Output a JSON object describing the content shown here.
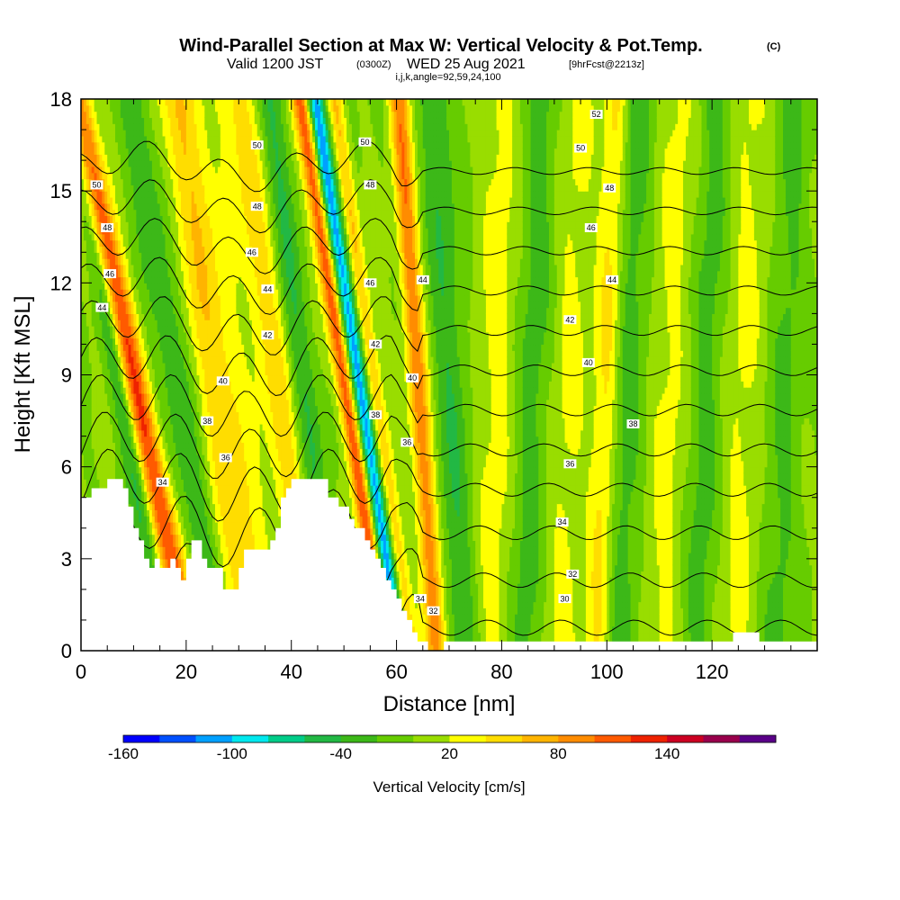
{
  "chart_data": {
    "type": "heatmap",
    "title": "Wind-Parallel Section at Max W: Vertical Velocity & Pot.Temp.",
    "copyright": "(C)",
    "subtitle_valid": "Valid 1200 JST",
    "subtitle_utc": "(0300Z)",
    "subtitle_date": "WED 25 Aug 2021",
    "subtitle_fcst": "[9hrFcst@2213z]",
    "subtitle_params": "i,j,k,angle=92,59,24,100",
    "xlabel": "Distance [nm]",
    "ylabel": "Height [Kft MSL]",
    "xlim": [
      0,
      140
    ],
    "ylim": [
      0,
      18
    ],
    "xticks": [
      0,
      20,
      40,
      60,
      80,
      100,
      120
    ],
    "yticks": [
      0,
      3,
      6,
      9,
      12,
      15,
      18
    ],
    "colorbar": {
      "label": "Vertical Velocity [cm/s]",
      "tick_labels": [
        "-160",
        "-100",
        "-40",
        "20",
        "80",
        "140"
      ],
      "tick_values": [
        -160,
        -100,
        -40,
        20,
        80,
        140
      ],
      "levels": [
        -160,
        -140,
        -120,
        -100,
        -80,
        -60,
        -40,
        -20,
        0,
        20,
        40,
        60,
        80,
        100,
        120,
        140,
        160,
        180
      ],
      "colors": [
        "#0000ff",
        "#0050ff",
        "#00a0ff",
        "#00e8ee",
        "#00cc88",
        "#22b844",
        "#3cb818",
        "#66cc00",
        "#99dd00",
        "#ffff00",
        "#ffdd00",
        "#ffb400",
        "#ff8c00",
        "#ff5a00",
        "#ee2200",
        "#cc0022",
        "#99004c",
        "#5a0088"
      ]
    },
    "isentropes": {
      "label": "Pot.Temp.",
      "levels": [
        30,
        32,
        34,
        36,
        38,
        40,
        42,
        44,
        46,
        48,
        50,
        52
      ],
      "labels": [
        {
          "text": "52",
          "x": 98,
          "y": 17.5
        },
        {
          "text": "50",
          "x": 33.5,
          "y": 16.5
        },
        {
          "text": "50",
          "x": 3,
          "y": 15.2
        },
        {
          "text": "50",
          "x": 54,
          "y": 16.6
        },
        {
          "text": "50",
          "x": 95,
          "y": 16.4
        },
        {
          "text": "48",
          "x": 5,
          "y": 13.8
        },
        {
          "text": "48",
          "x": 33.5,
          "y": 14.5
        },
        {
          "text": "48",
          "x": 55,
          "y": 15.2
        },
        {
          "text": "48",
          "x": 100.5,
          "y": 15.1
        },
        {
          "text": "46",
          "x": 5.5,
          "y": 12.3
        },
        {
          "text": "46",
          "x": 32.5,
          "y": 13.0
        },
        {
          "text": "46",
          "x": 55,
          "y": 12.0
        },
        {
          "text": "46",
          "x": 97,
          "y": 13.8
        },
        {
          "text": "44",
          "x": 4,
          "y": 11.2
        },
        {
          "text": "44",
          "x": 35.5,
          "y": 11.8
        },
        {
          "text": "44",
          "x": 65,
          "y": 12.1
        },
        {
          "text": "44",
          "x": 101,
          "y": 12.1
        },
        {
          "text": "42",
          "x": 35.5,
          "y": 10.3
        },
        {
          "text": "42",
          "x": 56,
          "y": 10.0
        },
        {
          "text": "42",
          "x": 93,
          "y": 10.8
        },
        {
          "text": "40",
          "x": 27,
          "y": 8.8
        },
        {
          "text": "40",
          "x": 63,
          "y": 8.9
        },
        {
          "text": "40",
          "x": 96.5,
          "y": 9.4
        },
        {
          "text": "38",
          "x": 24,
          "y": 7.5
        },
        {
          "text": "38",
          "x": 56,
          "y": 7.7
        },
        {
          "text": "38",
          "x": 105,
          "y": 7.4
        },
        {
          "text": "36",
          "x": 27.5,
          "y": 6.3
        },
        {
          "text": "36",
          "x": 62,
          "y": 6.8
        },
        {
          "text": "36",
          "x": 93,
          "y": 6.1
        },
        {
          "text": "34",
          "x": 15.5,
          "y": 5.5
        },
        {
          "text": "34",
          "x": 64.5,
          "y": 1.7
        },
        {
          "text": "34",
          "x": 91.5,
          "y": 4.2
        },
        {
          "text": "32",
          "x": 67,
          "y": 1.3
        },
        {
          "text": "32",
          "x": 93.5,
          "y": 2.5
        },
        {
          "text": "30",
          "x": 92,
          "y": 1.7
        }
      ]
    },
    "terrain_kft": [
      [
        0,
        5.0
      ],
      [
        2,
        5.0
      ],
      [
        2,
        5.3
      ],
      [
        5,
        5.3
      ],
      [
        5,
        5.6
      ],
      [
        8,
        5.6
      ],
      [
        8,
        5.3
      ],
      [
        9,
        5.3
      ],
      [
        9,
        4.7
      ],
      [
        10,
        4.7
      ],
      [
        10,
        4.0
      ],
      [
        11,
        4.0
      ],
      [
        11,
        3.6
      ],
      [
        12,
        3.6
      ],
      [
        12,
        3.0
      ],
      [
        13,
        3.0
      ],
      [
        13,
        2.7
      ],
      [
        14,
        2.7
      ],
      [
        14,
        3.0
      ],
      [
        15,
        3.0
      ],
      [
        15,
        2.7
      ],
      [
        17,
        2.7
      ],
      [
        17,
        3.0
      ],
      [
        18,
        3.0
      ],
      [
        18,
        2.7
      ],
      [
        19,
        2.7
      ],
      [
        19,
        2.3
      ],
      [
        20,
        2.3
      ],
      [
        20,
        3.0
      ],
      [
        21,
        3.0
      ],
      [
        21,
        3.6
      ],
      [
        23,
        3.6
      ],
      [
        23,
        3.0
      ],
      [
        24,
        3.0
      ],
      [
        24,
        2.7
      ],
      [
        27,
        2.7
      ],
      [
        27,
        2.0
      ],
      [
        30,
        2.0
      ],
      [
        30,
        2.7
      ],
      [
        31,
        2.7
      ],
      [
        31,
        3.3
      ],
      [
        36,
        3.3
      ],
      [
        36,
        3.6
      ],
      [
        37,
        3.6
      ],
      [
        37,
        4.0
      ],
      [
        38,
        4.0
      ],
      [
        38,
        5.0
      ],
      [
        39,
        5.0
      ],
      [
        39,
        5.3
      ],
      [
        40,
        5.3
      ],
      [
        40,
        5.6
      ],
      [
        47,
        5.6
      ],
      [
        47,
        5.0
      ],
      [
        49,
        5.0
      ],
      [
        49,
        4.7
      ],
      [
        51,
        4.7
      ],
      [
        51,
        4.3
      ],
      [
        52,
        4.3
      ],
      [
        52,
        4.0
      ],
      [
        54,
        4.0
      ],
      [
        54,
        3.6
      ],
      [
        55,
        3.6
      ],
      [
        55,
        3.3
      ],
      [
        56,
        3.3
      ],
      [
        56,
        3.0
      ],
      [
        57,
        3.0
      ],
      [
        57,
        2.7
      ],
      [
        58,
        2.7
      ],
      [
        58,
        2.3
      ],
      [
        59,
        2.3
      ],
      [
        59,
        2.0
      ],
      [
        60,
        2.0
      ],
      [
        60,
        1.7
      ],
      [
        61,
        1.7
      ],
      [
        61,
        1.3
      ],
      [
        62,
        1.3
      ],
      [
        62,
        1.0
      ],
      [
        63,
        1.0
      ],
      [
        63,
        0.6
      ],
      [
        64,
        0.6
      ],
      [
        64,
        0.3
      ],
      [
        66,
        0.3
      ],
      [
        66,
        0.0
      ],
      [
        69,
        0.0
      ],
      [
        69,
        0.3
      ],
      [
        124,
        0.3
      ],
      [
        124,
        0.6
      ],
      [
        129,
        0.6
      ],
      [
        129,
        0.3
      ],
      [
        140,
        0.3
      ]
    ]
  }
}
